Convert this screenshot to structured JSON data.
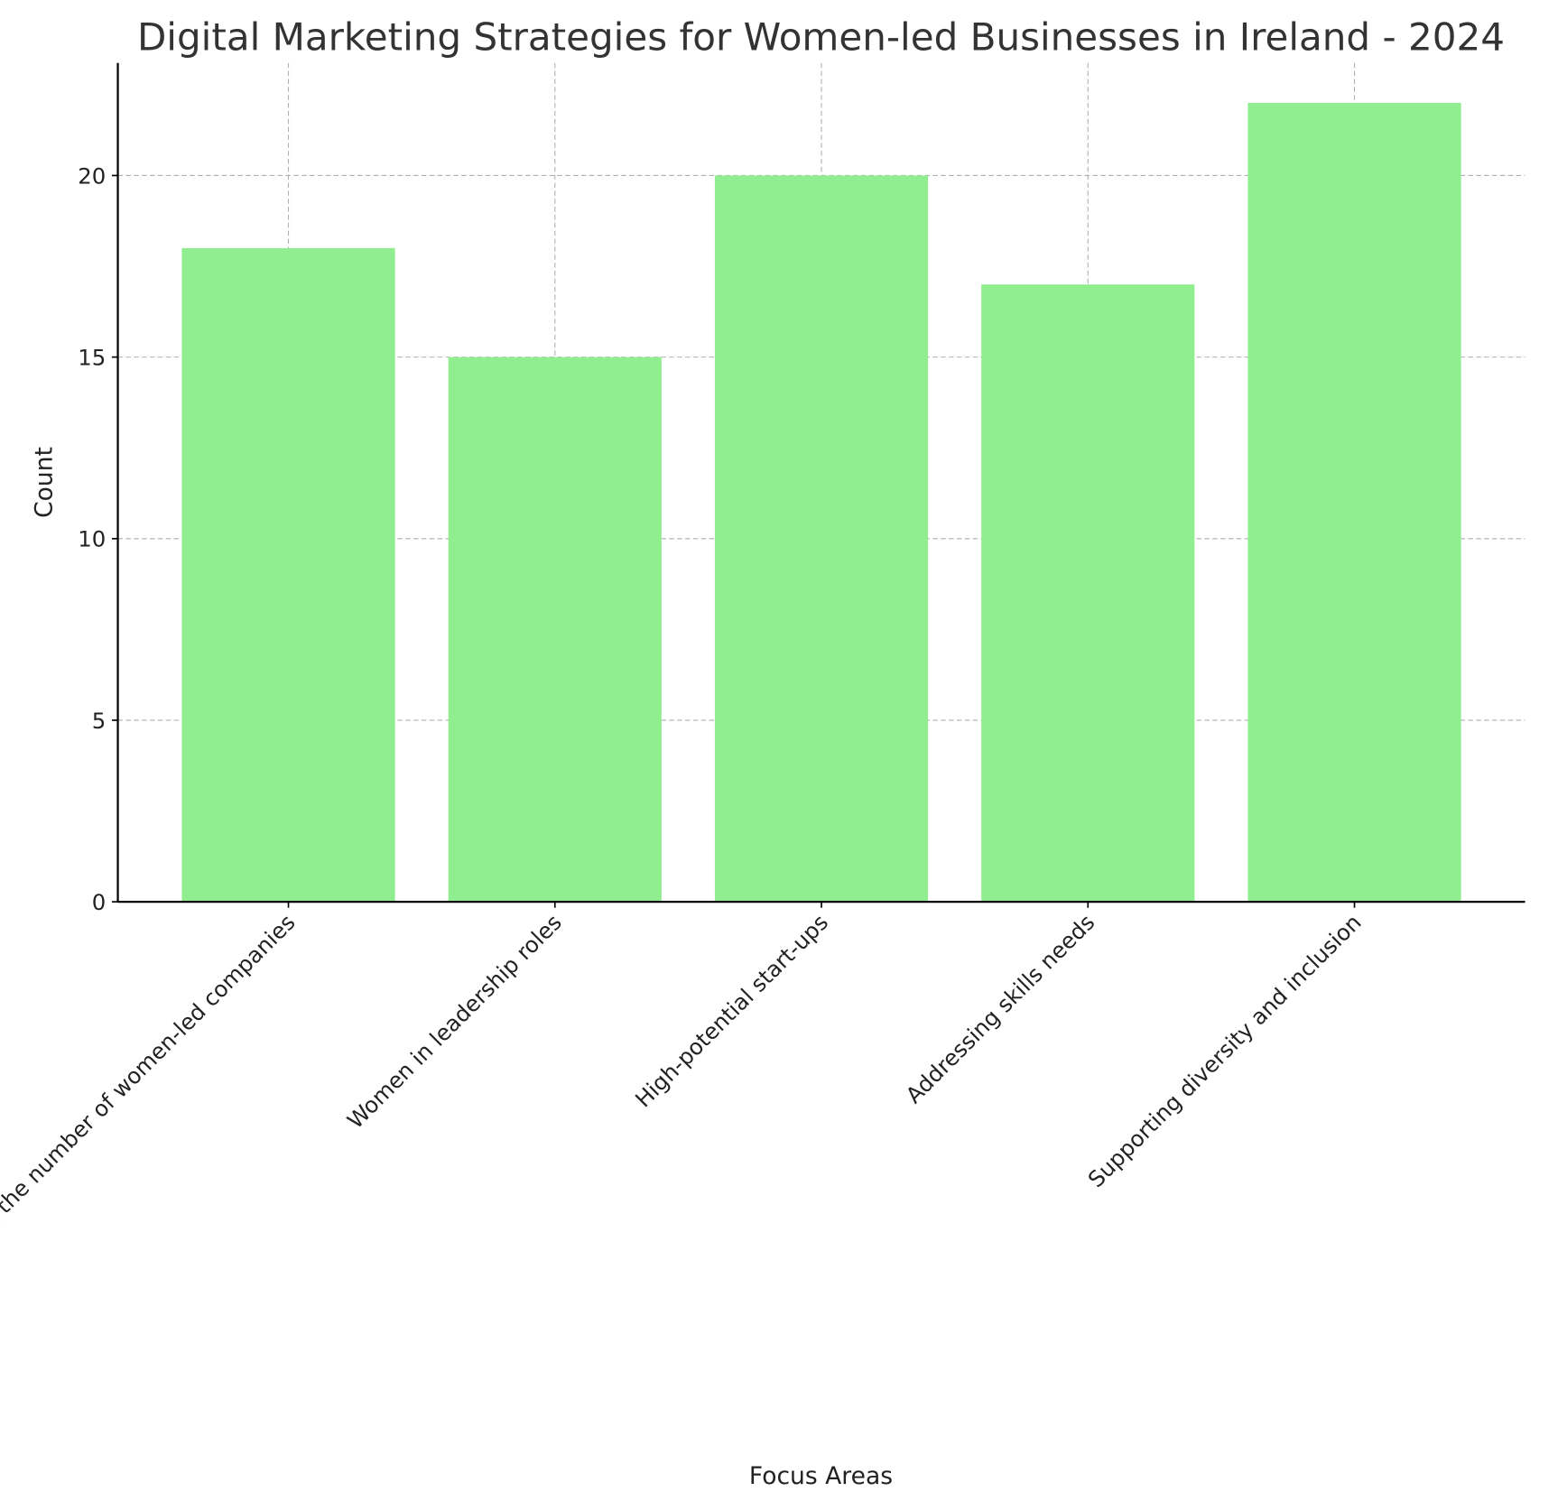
{
  "chart_data": {
    "type": "bar",
    "title": "Digital Marketing Strategies for Women-led Businesses in Ireland - 2024",
    "xlabel": "Focus Areas",
    "ylabel": "Count",
    "categories": [
      "Increasing the number of women-led companies",
      "Women in leadership roles",
      "High-potential start-ups",
      "Addressing skills needs",
      "Supporting diversity and inclusion"
    ],
    "values": [
      18,
      15,
      20,
      17,
      22
    ],
    "ylim": [
      0,
      23.1
    ],
    "yticks": [
      0,
      5,
      10,
      15,
      20
    ],
    "grid": true,
    "bar_color": "#90ee90"
  }
}
